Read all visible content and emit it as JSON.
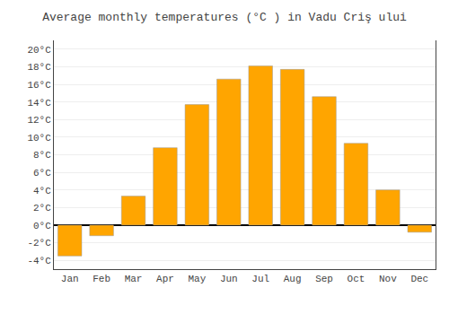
{
  "chart_data": {
    "type": "bar",
    "title": "Average monthly temperatures (°C ) in Vadu Criş ului",
    "categories": [
      "Jan",
      "Feb",
      "Mar",
      "Apr",
      "May",
      "Jun",
      "Jul",
      "Aug",
      "Sep",
      "Oct",
      "Nov",
      "Dec"
    ],
    "values": [
      -3.5,
      -1.2,
      3.3,
      8.8,
      13.7,
      16.6,
      18.1,
      17.7,
      14.6,
      9.3,
      4.0,
      -0.8
    ],
    "color": "#FFA500",
    "ylim": [
      -5,
      21
    ],
    "yticks": [
      {
        "value": -4,
        "label": "-4°C"
      },
      {
        "value": -2,
        "label": "-2°C"
      },
      {
        "value": 0,
        "label": "0°C"
      },
      {
        "value": 2,
        "label": "2°C"
      },
      {
        "value": 4,
        "label": "4°C"
      },
      {
        "value": 6,
        "label": "6°C"
      },
      {
        "value": 8,
        "label": "8°C"
      },
      {
        "value": 10,
        "label": "10°C"
      },
      {
        "value": 12,
        "label": "12°C"
      },
      {
        "value": 14,
        "label": "14°C"
      },
      {
        "value": 16,
        "label": "16°C"
      },
      {
        "value": 18,
        "label": "18°C"
      },
      {
        "value": 20,
        "label": "20°C"
      }
    ],
    "grid": true
  }
}
